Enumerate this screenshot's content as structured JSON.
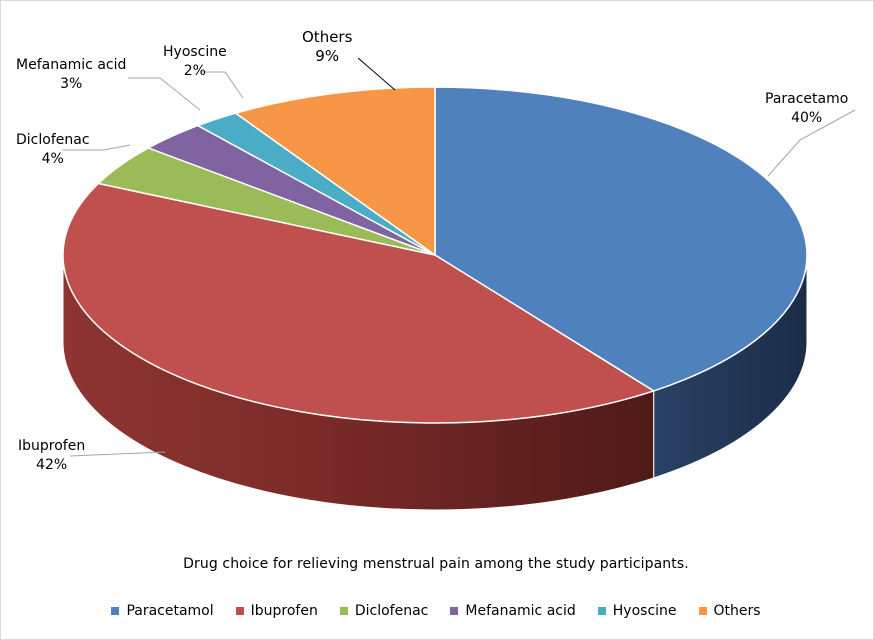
{
  "chart_data": {
    "type": "pie",
    "title": "Drug choice for relieving menstrual pain among the study participants.",
    "categories": [
      "Paracetamol",
      "Ibuprofen",
      "Diclofenac",
      "Mefanamic acid",
      "Hyoscine",
      "Others"
    ],
    "values": [
      40,
      42,
      4,
      3,
      2,
      9
    ],
    "unit": "%",
    "colors": [
      "#4f81bd",
      "#c0504d",
      "#9bbb59",
      "#8064a2",
      "#4bacc6",
      "#f79646"
    ],
    "data_labels": [
      {
        "name": "Paracetamo",
        "pct": "40%"
      },
      {
        "name": "Ibuprofen",
        "pct": "42%"
      },
      {
        "name": "Diclofenac",
        "pct": "4%"
      },
      {
        "name": "Mefanamic acid",
        "pct": "3%"
      },
      {
        "name": "Hyoscine",
        "pct": "2%"
      },
      {
        "name": "Others",
        "pct": "9%"
      }
    ],
    "legend": {
      "position": "bottom",
      "items": [
        "Paracetamol",
        "Ibuprofen",
        "Diclofenac",
        "Mefanamic acid",
        "Hyoscine",
        "Others"
      ]
    },
    "style": "3d"
  }
}
